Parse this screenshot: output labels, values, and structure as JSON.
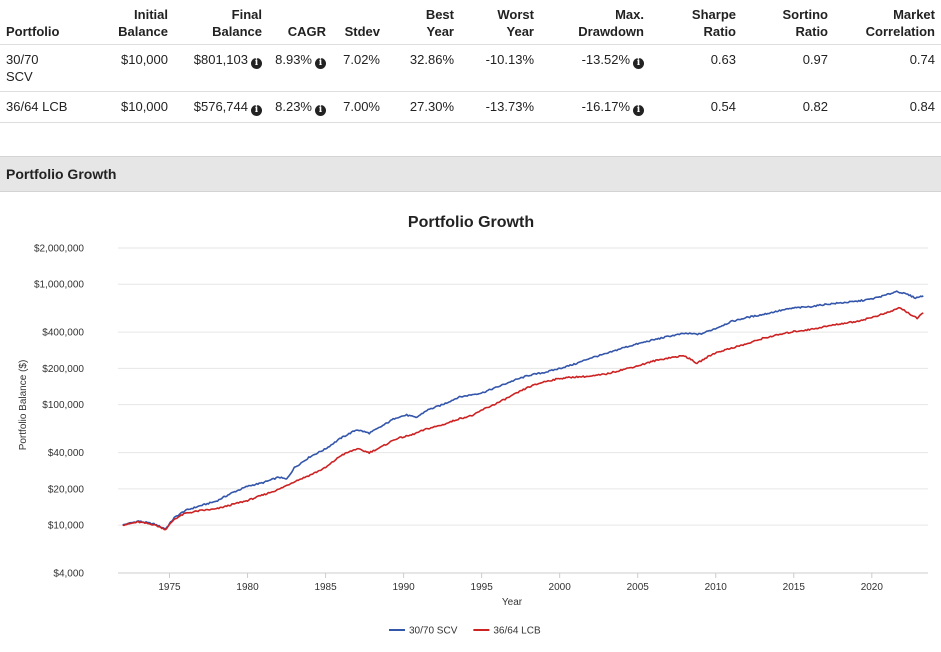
{
  "table": {
    "headers": {
      "portfolio": "Portfolio",
      "initial": [
        "Initial",
        "Balance"
      ],
      "final": [
        "Final",
        "Balance"
      ],
      "cagr": "CAGR",
      "stdev": "Stdev",
      "best": [
        "Best",
        "Year"
      ],
      "worst": [
        "Worst",
        "Year"
      ],
      "mdd": [
        "Max.",
        "Drawdown"
      ],
      "sharpe": [
        "Sharpe",
        "Ratio"
      ],
      "sortino": [
        "Sortino",
        "Ratio"
      ],
      "corr": [
        "Market",
        "Correlation"
      ]
    },
    "rows": [
      {
        "name": [
          "30/70",
          "SCV"
        ],
        "initial": "$10,000",
        "final": "$801,103",
        "cagr": "8.93%",
        "stdev": "7.02%",
        "best": "32.86%",
        "worst": "-10.13%",
        "mdd": "-13.52%",
        "sharpe": "0.63",
        "sortino": "0.97",
        "corr": "0.74"
      },
      {
        "name": [
          "36/64 LCB"
        ],
        "initial": "$10,000",
        "final": "$576,744",
        "cagr": "8.23%",
        "stdev": "7.00%",
        "best": "27.30%",
        "worst": "-13.73%",
        "mdd": "-16.17%",
        "sharpe": "0.54",
        "sortino": "0.82",
        "corr": "0.84"
      }
    ]
  },
  "section": {
    "title": "Portfolio Growth"
  },
  "chart_data": {
    "type": "line",
    "title": "Portfolio Growth",
    "xlabel": "Year",
    "ylabel": "Portfolio Balance ($)",
    "yscale": "log",
    "ylim": [
      4000,
      2000000
    ],
    "xlim": [
      1971.7,
      2023.6
    ],
    "x_ticks": [
      1975,
      1980,
      1985,
      1990,
      1995,
      2000,
      2005,
      2010,
      2015,
      2020
    ],
    "y_ticks": [
      {
        "value": 4000,
        "label": "$4,000"
      },
      {
        "value": 10000,
        "label": "$10,000"
      },
      {
        "value": 20000,
        "label": "$20,000"
      },
      {
        "value": 40000,
        "label": "$40,000"
      },
      {
        "value": 100000,
        "label": "$100,000"
      },
      {
        "value": 200000,
        "label": "$200,000"
      },
      {
        "value": 400000,
        "label": "$400,000"
      },
      {
        "value": 1000000,
        "label": "$1,000,000"
      },
      {
        "value": 2000000,
        "label": "$2,000,000"
      }
    ],
    "grid": true,
    "legend_position": "bottom-center",
    "series": [
      {
        "name": "30/70 SCV",
        "color": "#3355aa",
        "points": [
          [
            1972.0,
            10000
          ],
          [
            1973.0,
            10800
          ],
          [
            1974.0,
            10200
          ],
          [
            1974.75,
            9300
          ],
          [
            1975.3,
            11500
          ],
          [
            1976.0,
            13200
          ],
          [
            1977.0,
            14500
          ],
          [
            1978.0,
            15800
          ],
          [
            1979.0,
            18500
          ],
          [
            1980.0,
            21000
          ],
          [
            1981.0,
            22500
          ],
          [
            1982.0,
            25000
          ],
          [
            1982.5,
            24000
          ],
          [
            1983.0,
            30000
          ],
          [
            1984.0,
            37000
          ],
          [
            1985.0,
            43000
          ],
          [
            1986.0,
            53000
          ],
          [
            1987.0,
            62000
          ],
          [
            1987.8,
            58000
          ],
          [
            1988.5,
            65000
          ],
          [
            1989.5,
            78000
          ],
          [
            1990.2,
            82000
          ],
          [
            1990.8,
            78000
          ],
          [
            1991.5,
            90000
          ],
          [
            1992.5,
            100000
          ],
          [
            1993.5,
            115000
          ],
          [
            1994.5,
            122000
          ],
          [
            1995.0,
            125000
          ],
          [
            1996.0,
            140000
          ],
          [
            1997.0,
            158000
          ],
          [
            1998.0,
            175000
          ],
          [
            1999.0,
            185000
          ],
          [
            2000.0,
            200000
          ],
          [
            2001.0,
            218000
          ],
          [
            2002.0,
            245000
          ],
          [
            2003.0,
            265000
          ],
          [
            2004.0,
            295000
          ],
          [
            2005.0,
            320000
          ],
          [
            2006.0,
            345000
          ],
          [
            2007.0,
            370000
          ],
          [
            2008.0,
            390000
          ],
          [
            2009.0,
            385000
          ],
          [
            2010.0,
            430000
          ],
          [
            2011.0,
            490000
          ],
          [
            2012.0,
            530000
          ],
          [
            2013.0,
            560000
          ],
          [
            2014.0,
            600000
          ],
          [
            2015.0,
            635000
          ],
          [
            2016.0,
            650000
          ],
          [
            2017.0,
            680000
          ],
          [
            2018.0,
            700000
          ],
          [
            2019.0,
            720000
          ],
          [
            2020.0,
            755000
          ],
          [
            2021.0,
            820000
          ],
          [
            2021.6,
            875000
          ],
          [
            2022.3,
            820000
          ],
          [
            2022.8,
            770000
          ],
          [
            2023.3,
            801103
          ]
        ]
      },
      {
        "name": "36/64 LCB",
        "color": "#cc2222",
        "points": [
          [
            1972.0,
            10000
          ],
          [
            1973.0,
            10600
          ],
          [
            1974.0,
            10100
          ],
          [
            1974.75,
            9200
          ],
          [
            1975.3,
            11200
          ],
          [
            1976.0,
            12500
          ],
          [
            1977.0,
            13200
          ],
          [
            1978.0,
            13600
          ],
          [
            1979.0,
            14800
          ],
          [
            1980.0,
            16000
          ],
          [
            1981.0,
            17800
          ],
          [
            1982.0,
            19800
          ],
          [
            1983.0,
            23000
          ],
          [
            1984.0,
            26000
          ],
          [
            1985.0,
            30000
          ],
          [
            1986.0,
            38000
          ],
          [
            1987.0,
            43000
          ],
          [
            1987.8,
            40000
          ],
          [
            1988.5,
            44000
          ],
          [
            1989.5,
            52000
          ],
          [
            1990.5,
            56000
          ],
          [
            1991.5,
            63000
          ],
          [
            1992.5,
            68000
          ],
          [
            1993.5,
            76000
          ],
          [
            1994.5,
            82000
          ],
          [
            1995.0,
            90000
          ],
          [
            1996.0,
            103000
          ],
          [
            1997.0,
            120000
          ],
          [
            1998.0,
            140000
          ],
          [
            1999.0,
            155000
          ],
          [
            2000.0,
            165000
          ],
          [
            2001.0,
            170000
          ],
          [
            2002.0,
            172000
          ],
          [
            2003.0,
            180000
          ],
          [
            2004.0,
            195000
          ],
          [
            2005.0,
            210000
          ],
          [
            2006.0,
            230000
          ],
          [
            2007.0,
            245000
          ],
          [
            2008.0,
            255000
          ],
          [
            2008.8,
            220000
          ],
          [
            2009.5,
            250000
          ],
          [
            2010.0,
            270000
          ],
          [
            2011.0,
            295000
          ],
          [
            2012.0,
            320000
          ],
          [
            2013.0,
            355000
          ],
          [
            2014.0,
            380000
          ],
          [
            2015.0,
            405000
          ],
          [
            2016.0,
            420000
          ],
          [
            2017.0,
            445000
          ],
          [
            2018.0,
            470000
          ],
          [
            2019.0,
            490000
          ],
          [
            2020.0,
            530000
          ],
          [
            2021.0,
            580000
          ],
          [
            2021.8,
            640000
          ],
          [
            2022.5,
            560000
          ],
          [
            2022.9,
            520000
          ],
          [
            2023.3,
            576744
          ]
        ]
      }
    ]
  }
}
